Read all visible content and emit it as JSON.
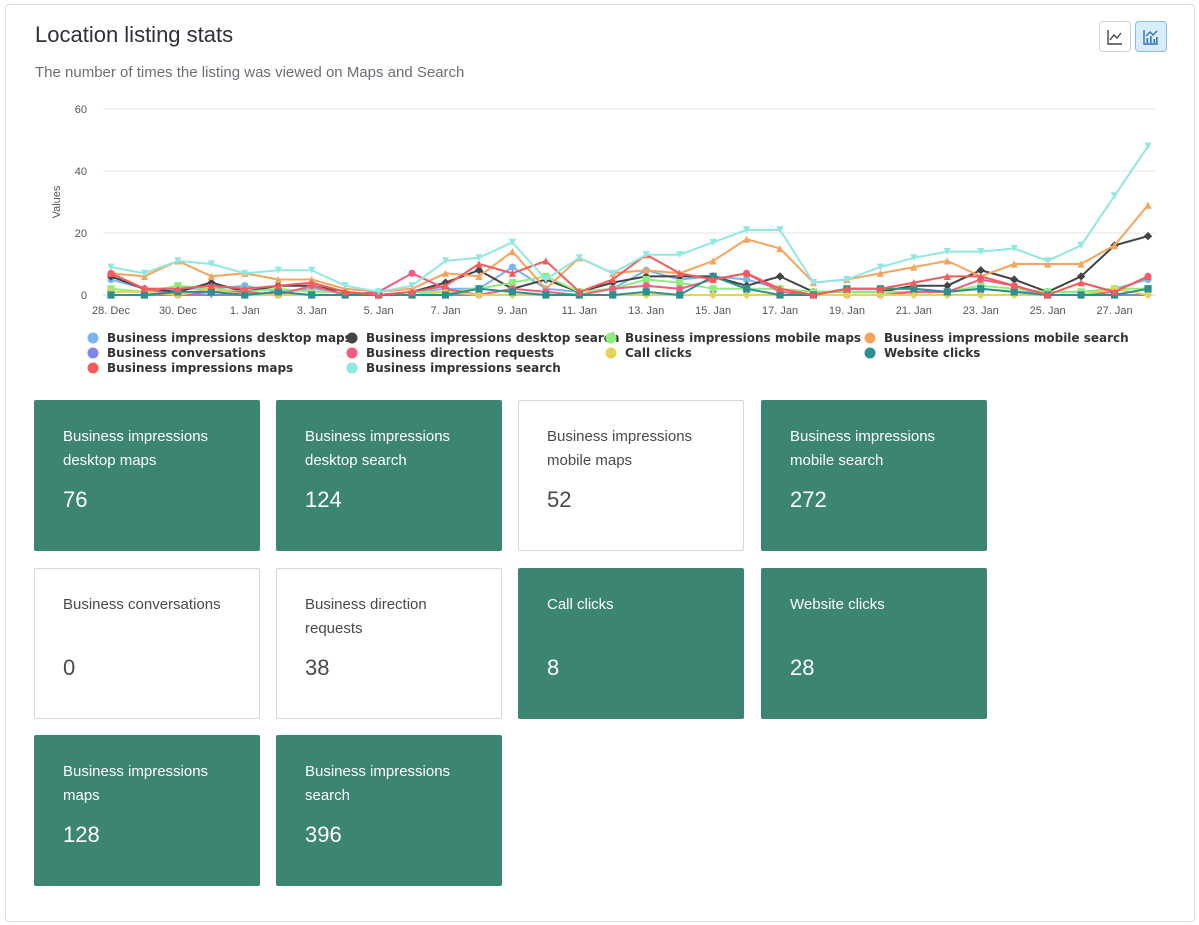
{
  "header": {
    "title": "Location listing stats",
    "subtitle": "The number of times the listing was viewed on Maps and Search",
    "line_view_label": "line-chart-icon",
    "area_view_label": "area-chart-icon"
  },
  "chart_data": {
    "type": "line",
    "ylabel": "Values",
    "ylim": [
      0,
      60
    ],
    "yticks": [
      0,
      20,
      40,
      60
    ],
    "grid": true,
    "legend_position": "bottom",
    "x": [
      "28. Dec",
      "29. Dec",
      "30. Dec",
      "31. Dec",
      "1. Jan",
      "2. Jan",
      "3. Jan",
      "4. Jan",
      "5. Jan",
      "6. Jan",
      "7. Jan",
      "8. Jan",
      "9. Jan",
      "10. Jan",
      "11. Jan",
      "12. Jan",
      "13. Jan",
      "14. Jan",
      "15. Jan",
      "16. Jan",
      "17. Jan",
      "18. Jan",
      "19. Jan",
      "20. Jan",
      "21. Jan",
      "22. Jan",
      "23. Jan",
      "24. Jan",
      "25. Jan",
      "26. Jan",
      "27. Jan",
      "28. Jan"
    ],
    "xtick_labels": [
      "28. Dec",
      "30. Dec",
      "1. Jan",
      "3. Jan",
      "5. Jan",
      "7. Jan",
      "9. Jan",
      "11. Jan",
      "13. Jan",
      "15. Jan",
      "17. Jan",
      "19. Jan",
      "21. Jan",
      "23. Jan",
      "25. Jan",
      "27. Jan"
    ],
    "series": [
      {
        "name": "Business impressions desktop maps",
        "color": "#7cb5ec",
        "marker": "circle",
        "values": [
          5,
          2,
          2,
          2,
          3,
          1,
          2,
          1,
          0,
          1,
          2,
          2,
          9,
          2,
          1,
          2,
          8,
          5,
          6,
          5,
          2,
          0,
          2,
          2,
          2,
          1,
          2,
          1,
          1,
          1,
          2,
          5
        ]
      },
      {
        "name": "Business impressions desktop search",
        "color": "#434348",
        "marker": "diamond",
        "values": [
          6,
          2,
          1,
          4,
          1,
          3,
          3,
          1,
          0,
          1,
          4,
          8,
          2,
          5,
          1,
          4,
          6,
          6,
          6,
          3,
          6,
          1,
          1,
          1,
          3,
          3,
          8,
          5,
          1,
          6,
          16,
          19
        ]
      },
      {
        "name": "Business impressions mobile maps",
        "color": "#90ed7d",
        "marker": "square",
        "values": [
          2,
          1,
          3,
          2,
          1,
          2,
          1,
          1,
          0,
          1,
          1,
          2,
          4,
          6,
          1,
          2,
          5,
          4,
          2,
          2,
          2,
          1,
          1,
          1,
          1,
          1,
          3,
          2,
          1,
          1,
          2,
          2
        ]
      },
      {
        "name": "Business impressions mobile search",
        "color": "#f7a35c",
        "marker": "triangle",
        "values": [
          7,
          6,
          11,
          6,
          7,
          5,
          5,
          2,
          1,
          2,
          7,
          6,
          14,
          2,
          12,
          7,
          8,
          7,
          11,
          18,
          15,
          4,
          5,
          7,
          9,
          11,
          6,
          10,
          10,
          10,
          16,
          29
        ]
      },
      {
        "name": "Business conversations",
        "color": "#8085e9",
        "marker": "triangle-down",
        "values": [
          0,
          0,
          0,
          0,
          0,
          0,
          0,
          0,
          0,
          0,
          0,
          0,
          0,
          0,
          0,
          0,
          0,
          0,
          0,
          0,
          0,
          0,
          0,
          0,
          0,
          0,
          0,
          0,
          0,
          0,
          0,
          0
        ]
      },
      {
        "name": "Business direction requests",
        "color": "#f15c80",
        "marker": "circle",
        "values": [
          7,
          2,
          0,
          1,
          1,
          0,
          3,
          0,
          1,
          7,
          2,
          0,
          2,
          1,
          0,
          2,
          3,
          2,
          5,
          7,
          1,
          0,
          0,
          0,
          1,
          1,
          5,
          3,
          0,
          0,
          1,
          6
        ]
      },
      {
        "name": "Call clicks",
        "color": "#e4d354",
        "marker": "diamond",
        "values": [
          1,
          1,
          0,
          2,
          0,
          0,
          0,
          0,
          0,
          0,
          1,
          0,
          0,
          0,
          0,
          0,
          0,
          0,
          0,
          0,
          0,
          0,
          0,
          0,
          0,
          0,
          0,
          0,
          0,
          0,
          2,
          0
        ]
      },
      {
        "name": "Website clicks",
        "color": "#2b908f",
        "marker": "square",
        "values": [
          0,
          0,
          1,
          1,
          0,
          1,
          0,
          0,
          0,
          0,
          0,
          2,
          1,
          0,
          0,
          0,
          1,
          0,
          6,
          2,
          0,
          0,
          2,
          2,
          2,
          1,
          2,
          1,
          0,
          0,
          0,
          2
        ]
      },
      {
        "name": "Business impressions maps",
        "color": "#f45b5b",
        "marker": "triangle",
        "values": [
          7,
          2,
          2,
          3,
          2,
          3,
          4,
          1,
          0,
          1,
          3,
          10,
          7,
          11,
          1,
          5,
          13,
          7,
          5,
          7,
          2,
          0,
          2,
          2,
          4,
          6,
          6,
          3,
          0,
          4,
          1,
          6
        ]
      },
      {
        "name": "Business impressions search",
        "color": "#91e8e1",
        "marker": "triangle-down",
        "values": [
          9,
          7,
          11,
          10,
          7,
          8,
          8,
          3,
          1,
          3,
          11,
          12,
          17,
          5,
          12,
          7,
          13,
          13,
          17,
          21,
          21,
          4,
          5,
          9,
          12,
          14,
          14,
          15,
          11,
          16,
          32,
          48
        ]
      }
    ]
  },
  "cards": [
    {
      "label": "Business impressions desktop maps",
      "value": "76",
      "style": "dark"
    },
    {
      "label": "Business impressions desktop search",
      "value": "124",
      "style": "dark"
    },
    {
      "label": "Business impressions mobile maps",
      "value": "52",
      "style": "light"
    },
    {
      "label": "Business impressions mobile search",
      "value": "272",
      "style": "dark"
    },
    {
      "label": "Business conversations",
      "value": "0",
      "style": "light"
    },
    {
      "label": "Business direction requests",
      "value": "38",
      "style": "light"
    },
    {
      "label": "Call clicks",
      "value": "8",
      "style": "dark"
    },
    {
      "label": "Website clicks",
      "value": "28",
      "style": "dark"
    },
    {
      "label": "Business impressions maps",
      "value": "128",
      "style": "dark"
    },
    {
      "label": "Business impressions search",
      "value": "396",
      "style": "dark"
    }
  ]
}
